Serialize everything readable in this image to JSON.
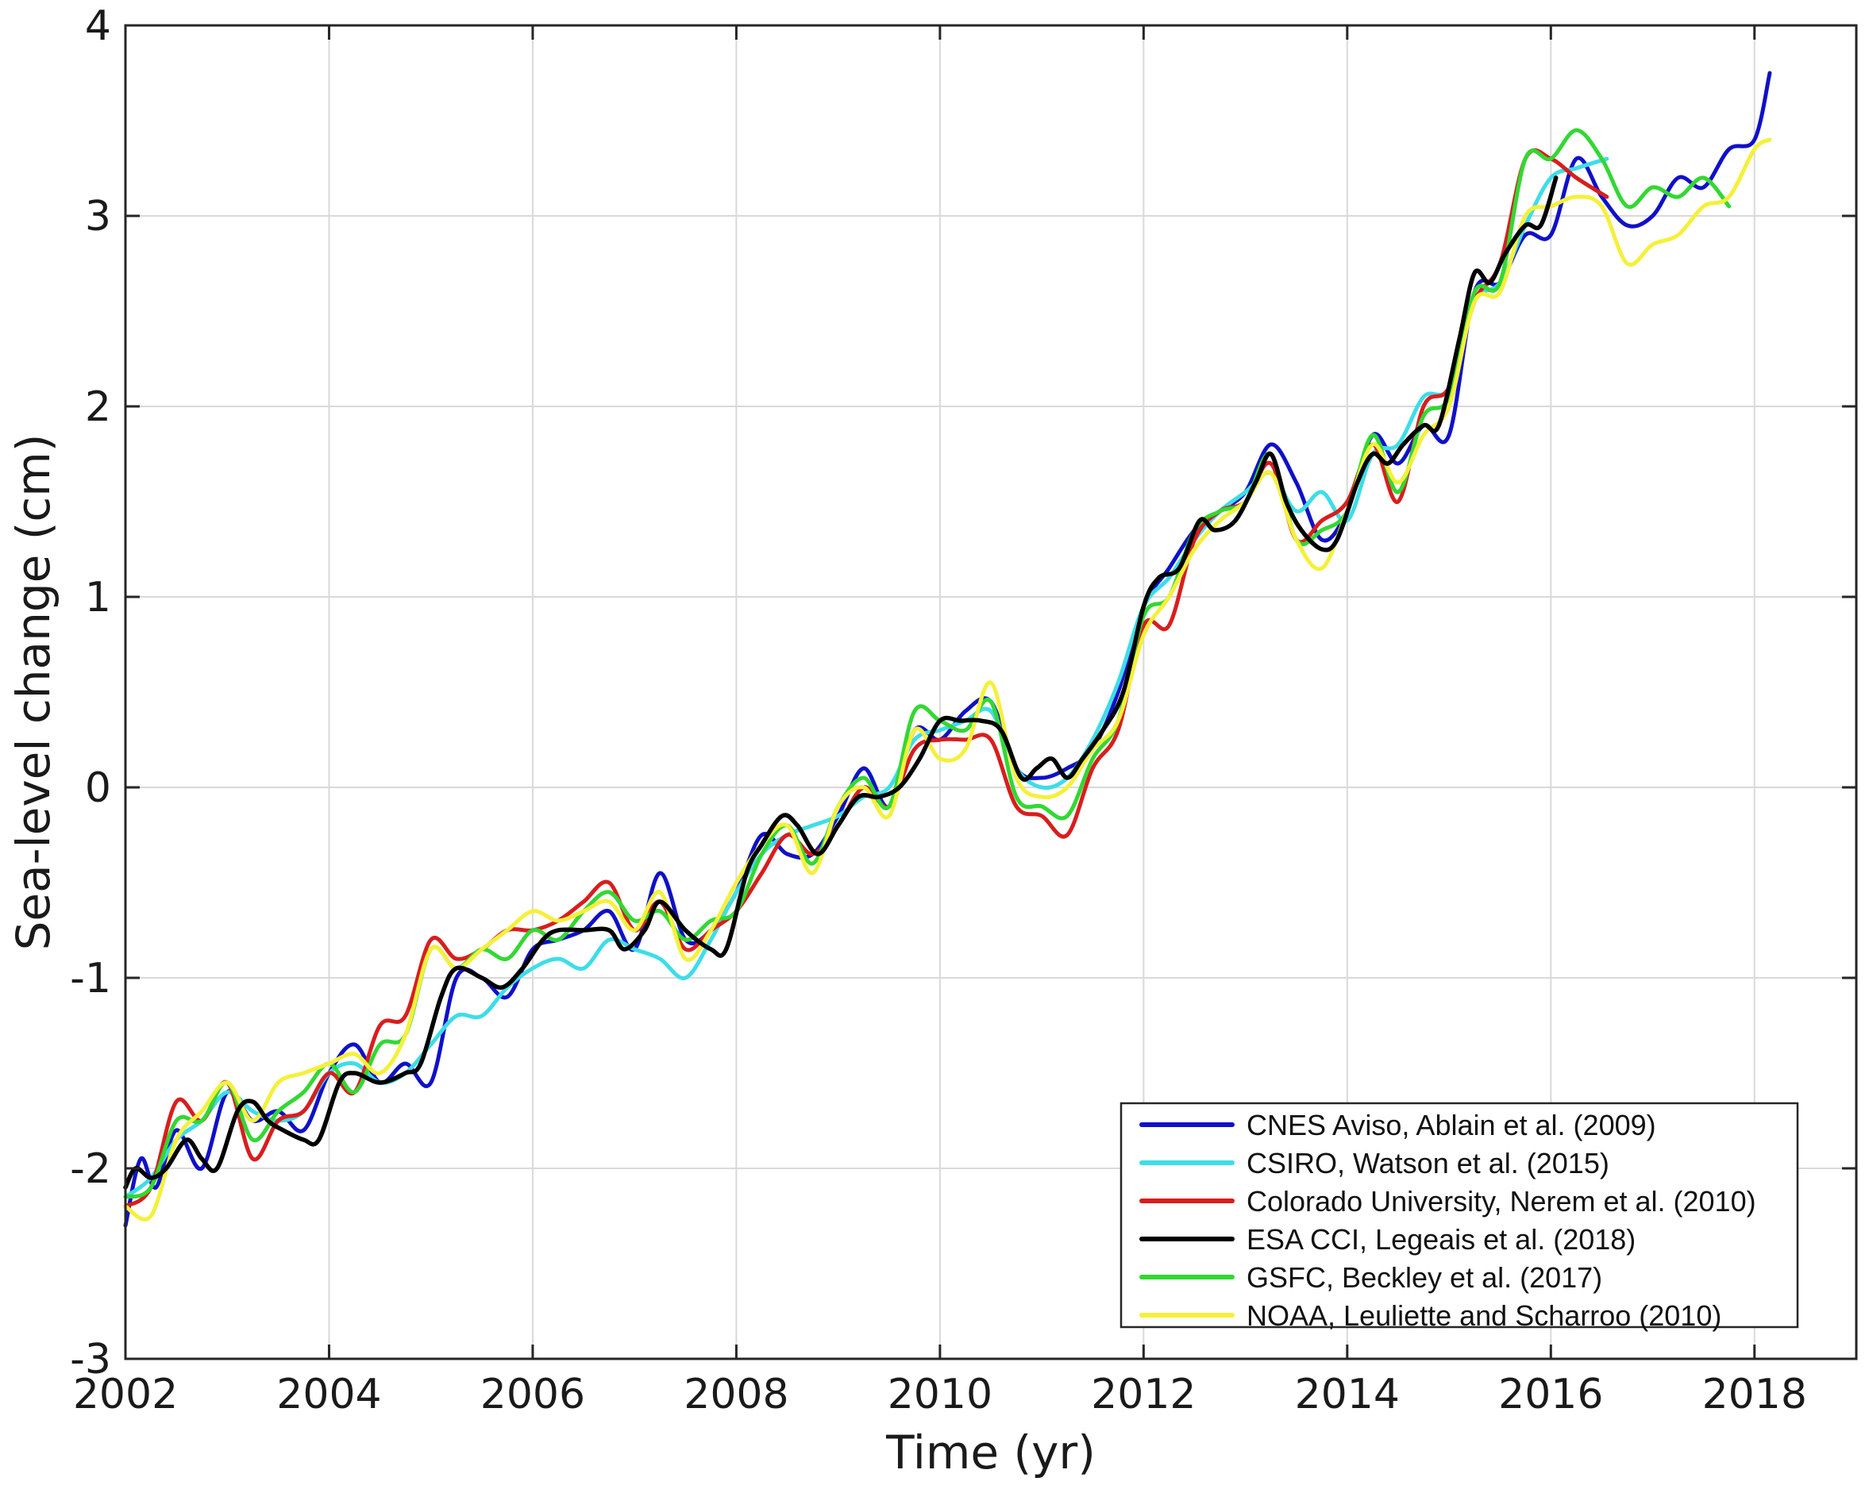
{
  "chart_data": {
    "type": "line",
    "xlabel": "Time (yr)",
    "ylabel": "Sea-level change (cm)",
    "xlim": [
      2002,
      2019
    ],
    "ylim": [
      -3,
      4
    ],
    "x_ticks": [
      2002,
      2004,
      2006,
      2008,
      2010,
      2012,
      2014,
      2016,
      2018
    ],
    "x_tick_labels": [
      "2002",
      "2004",
      "2006",
      "2008",
      "2010",
      "2012",
      "2014",
      "2016",
      "2018"
    ],
    "y_ticks": [
      -3,
      -2,
      -1,
      0,
      1,
      2,
      3,
      4
    ],
    "y_tick_labels": [
      "-3",
      "-2",
      "-1",
      "0",
      "1",
      "2",
      "3",
      "4"
    ],
    "grid": true,
    "legend_position": "bottom-right",
    "series": [
      {
        "name": "CNES Aviso, Ablain et al. (2009)",
        "color": "#1010c8",
        "x": [
          2002.0,
          2002.15,
          2002.3,
          2002.5,
          2002.75,
          2003.0,
          2003.25,
          2003.5,
          2003.75,
          2004.0,
          2004.25,
          2004.5,
          2004.75,
          2005.0,
          2005.25,
          2005.5,
          2005.75,
          2006.0,
          2006.25,
          2006.5,
          2006.75,
          2007.0,
          2007.25,
          2007.5,
          2007.75,
          2008.0,
          2008.25,
          2008.5,
          2008.75,
          2009.0,
          2009.25,
          2009.5,
          2009.75,
          2010.0,
          2010.25,
          2010.5,
          2010.75,
          2011.0,
          2011.25,
          2011.5,
          2011.75,
          2012.0,
          2012.25,
          2012.5,
          2012.75,
          2013.0,
          2013.25,
          2013.5,
          2013.75,
          2014.0,
          2014.25,
          2014.5,
          2014.75,
          2015.0,
          2015.25,
          2015.5,
          2015.75,
          2016.0,
          2016.25,
          2016.5,
          2016.75,
          2017.0,
          2017.25,
          2017.5,
          2017.75,
          2018.0,
          2018.15
        ],
        "y": [
          -2.3,
          -1.95,
          -2.1,
          -1.8,
          -2.0,
          -1.6,
          -1.75,
          -1.7,
          -1.8,
          -1.5,
          -1.35,
          -1.55,
          -1.45,
          -1.55,
          -1.0,
          -1.0,
          -1.1,
          -0.85,
          -0.8,
          -0.75,
          -0.65,
          -0.85,
          -0.45,
          -0.8,
          -0.75,
          -0.55,
          -0.25,
          -0.35,
          -0.35,
          -0.15,
          0.1,
          -0.1,
          0.3,
          0.25,
          0.4,
          0.45,
          0.1,
          0.05,
          0.1,
          0.2,
          0.5,
          0.95,
          1.15,
          1.35,
          1.45,
          1.55,
          1.8,
          1.6,
          1.3,
          1.45,
          1.85,
          1.7,
          1.9,
          1.85,
          2.6,
          2.65,
          2.9,
          2.9,
          3.3,
          3.1,
          2.95,
          3.0,
          3.2,
          3.15,
          3.35,
          3.4,
          3.75
        ]
      },
      {
        "name": "CSIRO, Watson et al. (2015)",
        "color": "#3ddde8",
        "x": [
          2002.0,
          2002.25,
          2002.5,
          2002.75,
          2003.0,
          2003.25,
          2003.5,
          2003.75,
          2004.0,
          2004.25,
          2004.5,
          2004.75,
          2005.0,
          2005.25,
          2005.5,
          2005.75,
          2006.0,
          2006.25,
          2006.5,
          2006.75,
          2007.0,
          2007.25,
          2007.5,
          2007.75,
          2008.0,
          2008.25,
          2008.5,
          2008.75,
          2009.0,
          2009.25,
          2009.5,
          2009.75,
          2010.0,
          2010.25,
          2010.5,
          2010.75,
          2011.0,
          2011.25,
          2011.5,
          2011.75,
          2012.0,
          2012.25,
          2012.5,
          2012.75,
          2013.0,
          2013.25,
          2013.5,
          2013.75,
          2014.0,
          2014.25,
          2014.5,
          2014.75,
          2015.0,
          2015.25,
          2015.5,
          2015.75,
          2016.0,
          2016.25,
          2016.55
        ],
        "y": [
          -2.15,
          -2.05,
          -1.85,
          -1.75,
          -1.6,
          -1.7,
          -1.75,
          -1.7,
          -1.5,
          -1.45,
          -1.55,
          -1.5,
          -1.35,
          -1.2,
          -1.2,
          -1.05,
          -0.95,
          -0.9,
          -0.95,
          -0.8,
          -0.85,
          -0.9,
          -1.0,
          -0.8,
          -0.55,
          -0.35,
          -0.25,
          -0.2,
          -0.15,
          -0.05,
          0.0,
          0.25,
          0.3,
          0.35,
          0.4,
          0.1,
          0.0,
          0.05,
          0.25,
          0.55,
          0.95,
          1.1,
          1.3,
          1.45,
          1.55,
          1.65,
          1.45,
          1.55,
          1.4,
          1.75,
          1.8,
          2.05,
          2.1,
          2.55,
          2.65,
          2.95,
          3.2,
          3.25,
          3.3
        ]
      },
      {
        "name": "Colorado University, Nerem et al. (2010)",
        "color": "#d81e1e",
        "x": [
          2002.0,
          2002.25,
          2002.5,
          2002.75,
          2003.0,
          2003.25,
          2003.5,
          2003.75,
          2004.0,
          2004.25,
          2004.5,
          2004.75,
          2005.0,
          2005.25,
          2005.5,
          2005.75,
          2006.0,
          2006.25,
          2006.5,
          2006.75,
          2007.0,
          2007.25,
          2007.5,
          2007.75,
          2008.0,
          2008.25,
          2008.5,
          2008.75,
          2009.0,
          2009.25,
          2009.5,
          2009.75,
          2010.0,
          2010.25,
          2010.5,
          2010.75,
          2011.0,
          2011.25,
          2011.5,
          2011.75,
          2012.0,
          2012.25,
          2012.5,
          2012.75,
          2013.0,
          2013.25,
          2013.5,
          2013.75,
          2014.0,
          2014.25,
          2014.5,
          2014.75,
          2015.0,
          2015.25,
          2015.5,
          2015.75,
          2016.0,
          2016.25,
          2016.55
        ],
        "y": [
          -2.2,
          -2.1,
          -1.65,
          -1.75,
          -1.55,
          -1.95,
          -1.75,
          -1.7,
          -1.5,
          -1.6,
          -1.25,
          -1.2,
          -0.8,
          -0.9,
          -0.85,
          -0.75,
          -0.75,
          -0.7,
          -0.6,
          -0.5,
          -0.75,
          -0.6,
          -0.85,
          -0.75,
          -0.65,
          -0.45,
          -0.25,
          -0.35,
          -0.2,
          0.0,
          -0.1,
          0.2,
          0.25,
          0.25,
          0.25,
          -0.1,
          -0.15,
          -0.25,
          0.1,
          0.3,
          0.85,
          0.85,
          1.3,
          1.45,
          1.5,
          1.7,
          1.3,
          1.4,
          1.5,
          1.8,
          1.5,
          2.0,
          2.1,
          2.55,
          2.75,
          3.3,
          3.3,
          3.2,
          3.1
        ]
      },
      {
        "name": "ESA CCI, Legeais et al. (2018)",
        "color": "#000000",
        "x": [
          2002.0,
          2002.1,
          2002.25,
          2002.4,
          2002.6,
          2002.75,
          2002.9,
          2003.1,
          2003.25,
          2003.4,
          2003.55,
          2003.75,
          2003.9,
          2004.1,
          2004.25,
          2004.5,
          2004.75,
          2004.9,
          2005.1,
          2005.25,
          2005.5,
          2005.7,
          2005.9,
          2006.1,
          2006.25,
          2006.5,
          2006.75,
          2006.9,
          2007.1,
          2007.25,
          2007.5,
          2007.75,
          2007.9,
          2008.1,
          2008.25,
          2008.45,
          2008.6,
          2008.8,
          2009.0,
          2009.2,
          2009.4,
          2009.6,
          2009.8,
          2010.0,
          2010.2,
          2010.4,
          2010.6,
          2010.8,
          2010.95,
          2011.1,
          2011.25,
          2011.4,
          2011.6,
          2011.8,
          2012.0,
          2012.15,
          2012.35,
          2012.55,
          2012.7,
          2012.9,
          2013.1,
          2013.25,
          2013.4,
          2013.55,
          2013.75,
          2013.9,
          2014.1,
          2014.25,
          2014.4,
          2014.55,
          2014.75,
          2014.9,
          2015.1,
          2015.25,
          2015.4,
          2015.55,
          2015.75,
          2015.9,
          2016.05
        ],
        "y": [
          -2.1,
          -2.0,
          -2.05,
          -2.0,
          -1.85,
          -1.95,
          -2.0,
          -1.7,
          -1.65,
          -1.75,
          -1.8,
          -1.85,
          -1.85,
          -1.55,
          -1.5,
          -1.55,
          -1.5,
          -1.45,
          -1.1,
          -0.95,
          -1.0,
          -1.05,
          -0.95,
          -0.8,
          -0.75,
          -0.75,
          -0.75,
          -0.85,
          -0.75,
          -0.6,
          -0.75,
          -0.85,
          -0.85,
          -0.45,
          -0.3,
          -0.15,
          -0.2,
          -0.35,
          -0.2,
          -0.05,
          -0.05,
          0.0,
          0.15,
          0.35,
          0.35,
          0.35,
          0.3,
          0.05,
          0.1,
          0.15,
          0.05,
          0.15,
          0.3,
          0.5,
          0.95,
          1.1,
          1.15,
          1.4,
          1.35,
          1.4,
          1.6,
          1.75,
          1.5,
          1.35,
          1.25,
          1.3,
          1.6,
          1.75,
          1.7,
          1.8,
          1.9,
          1.9,
          2.35,
          2.7,
          2.65,
          2.8,
          2.95,
          2.95,
          3.2
        ]
      },
      {
        "name": "GSFC, Beckley et al. (2017)",
        "color": "#32d832",
        "x": [
          2002.0,
          2002.25,
          2002.5,
          2002.75,
          2003.0,
          2003.25,
          2003.5,
          2003.75,
          2004.0,
          2004.25,
          2004.5,
          2004.75,
          2005.0,
          2005.25,
          2005.5,
          2005.75,
          2006.0,
          2006.25,
          2006.5,
          2006.75,
          2007.0,
          2007.25,
          2007.5,
          2007.75,
          2008.0,
          2008.25,
          2008.5,
          2008.75,
          2009.0,
          2009.25,
          2009.5,
          2009.75,
          2010.0,
          2010.25,
          2010.5,
          2010.75,
          2011.0,
          2011.25,
          2011.5,
          2011.75,
          2012.0,
          2012.25,
          2012.5,
          2012.75,
          2013.0,
          2013.25,
          2013.5,
          2013.75,
          2014.0,
          2014.25,
          2014.5,
          2014.75,
          2015.0,
          2015.25,
          2015.5,
          2015.75,
          2016.0,
          2016.25,
          2016.5,
          2016.75,
          2017.0,
          2017.25,
          2017.5,
          2017.75
        ],
        "y": [
          -2.15,
          -2.1,
          -1.75,
          -1.75,
          -1.55,
          -1.85,
          -1.7,
          -1.6,
          -1.45,
          -1.6,
          -1.35,
          -1.3,
          -0.85,
          -0.95,
          -0.85,
          -0.9,
          -0.75,
          -0.8,
          -0.65,
          -0.55,
          -0.7,
          -0.65,
          -0.8,
          -0.7,
          -0.65,
          -0.35,
          -0.2,
          -0.4,
          -0.1,
          0.05,
          -0.1,
          0.4,
          0.35,
          0.3,
          0.45,
          -0.05,
          -0.1,
          -0.15,
          0.15,
          0.35,
          0.9,
          1.0,
          1.35,
          1.45,
          1.5,
          1.75,
          1.3,
          1.35,
          1.45,
          1.85,
          1.55,
          1.95,
          2.05,
          2.6,
          2.65,
          3.3,
          3.3,
          3.45,
          3.3,
          3.05,
          3.15,
          3.1,
          3.2,
          3.05
        ]
      },
      {
        "name": "NOAA, Leuliette and Scharroo (2010)",
        "color": "#f5f03a",
        "x": [
          2002.0,
          2002.25,
          2002.5,
          2002.75,
          2003.0,
          2003.25,
          2003.5,
          2003.75,
          2004.0,
          2004.25,
          2004.5,
          2004.75,
          2005.0,
          2005.25,
          2005.5,
          2005.75,
          2006.0,
          2006.25,
          2006.5,
          2006.75,
          2007.0,
          2007.25,
          2007.5,
          2007.75,
          2008.0,
          2008.25,
          2008.5,
          2008.75,
          2009.0,
          2009.25,
          2009.5,
          2009.75,
          2010.0,
          2010.25,
          2010.5,
          2010.75,
          2011.0,
          2011.25,
          2011.5,
          2011.75,
          2012.0,
          2012.25,
          2012.5,
          2012.75,
          2013.0,
          2013.25,
          2013.5,
          2013.75,
          2014.0,
          2014.25,
          2014.5,
          2014.75,
          2015.0,
          2015.25,
          2015.5,
          2015.75,
          2016.0,
          2016.25,
          2016.5,
          2016.75,
          2017.0,
          2017.25,
          2017.5,
          2017.75,
          2018.0,
          2018.15
        ],
        "y": [
          -2.2,
          -2.25,
          -1.85,
          -1.7,
          -1.55,
          -1.75,
          -1.55,
          -1.5,
          -1.45,
          -1.4,
          -1.5,
          -1.3,
          -0.85,
          -0.95,
          -0.85,
          -0.75,
          -0.65,
          -0.7,
          -0.65,
          -0.6,
          -0.75,
          -0.55,
          -0.9,
          -0.75,
          -0.5,
          -0.3,
          -0.2,
          -0.45,
          -0.1,
          0.0,
          -0.15,
          0.3,
          0.15,
          0.2,
          0.55,
          0.05,
          -0.05,
          0.0,
          0.2,
          0.35,
          0.8,
          1.0,
          1.25,
          1.4,
          1.5,
          1.65,
          1.3,
          1.15,
          1.45,
          1.8,
          1.6,
          1.85,
          2.0,
          2.55,
          2.6,
          3.0,
          3.05,
          3.1,
          3.05,
          2.75,
          2.85,
          2.9,
          3.05,
          3.1,
          3.35,
          3.4
        ]
      }
    ]
  }
}
